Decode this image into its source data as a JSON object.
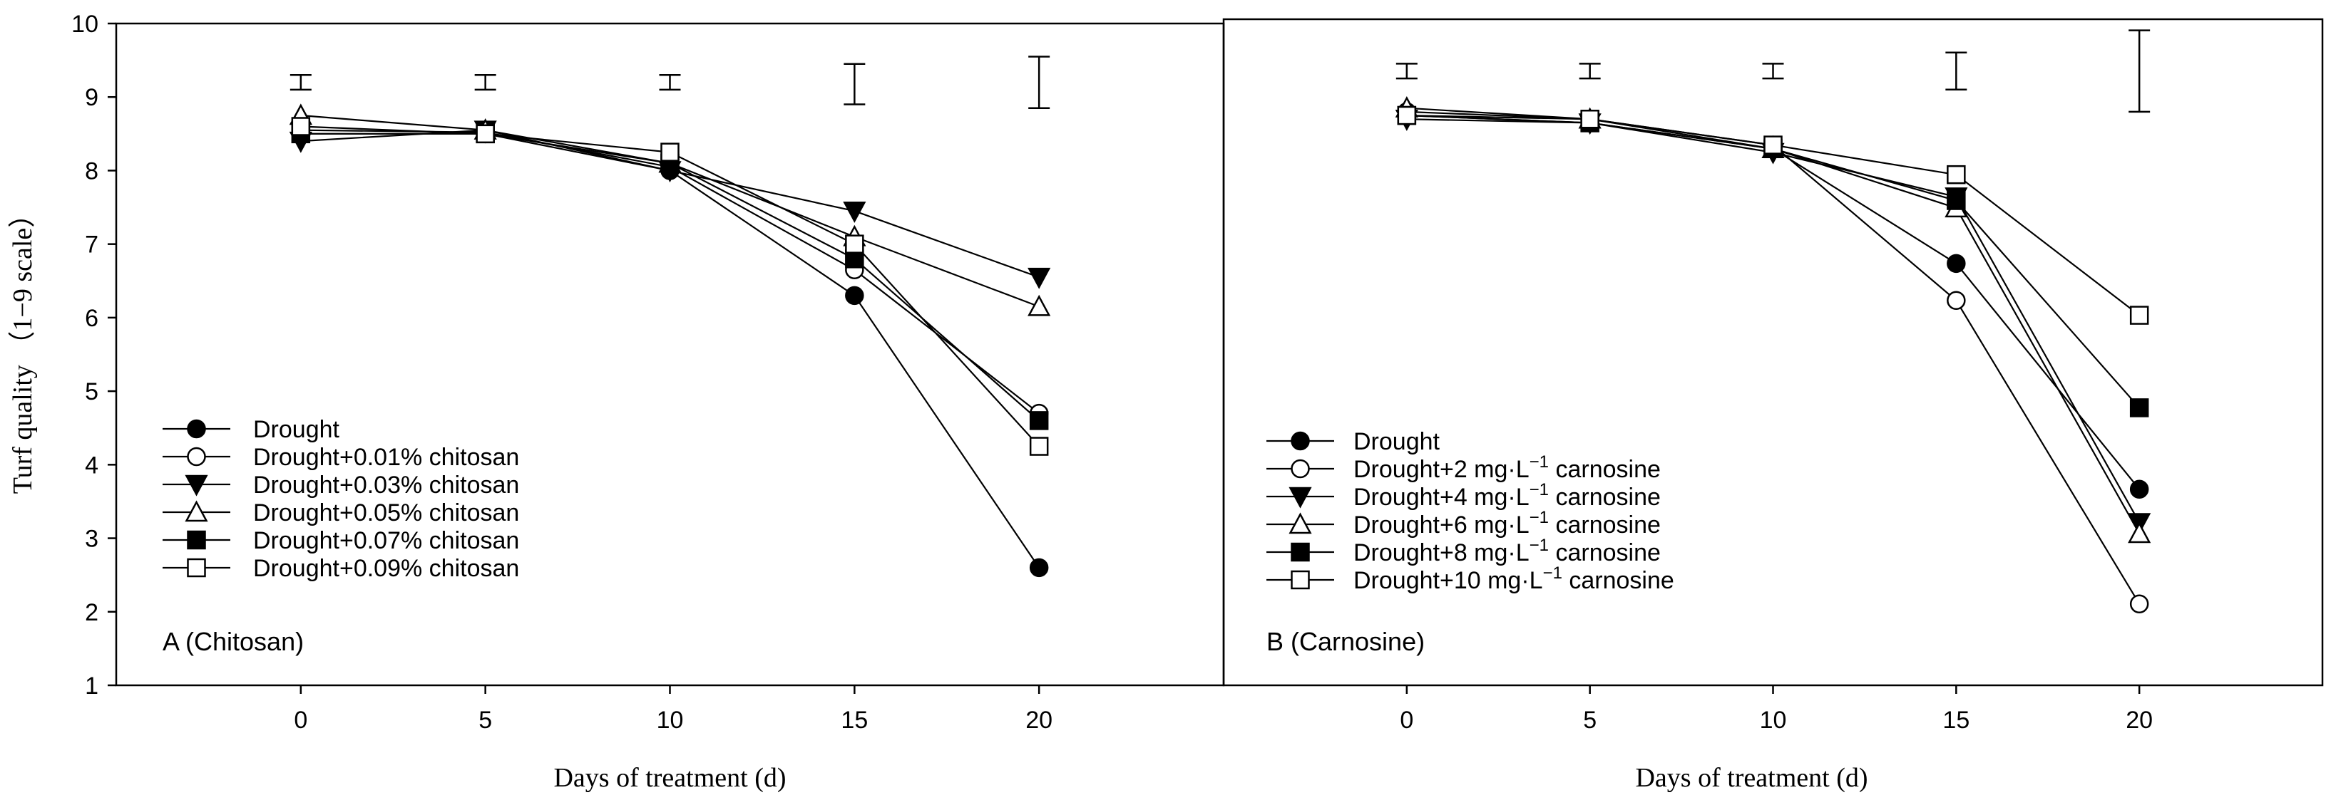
{
  "chart_data": [
    {
      "type": "line",
      "panel_label": "A (Chitosan)",
      "xlabel": "Days of treatment (d)",
      "ylabel": "Turf quality （1−9 scale）",
      "xlim": [
        -5,
        25
      ],
      "ylim": [
        1,
        10
      ],
      "x": [
        0,
        5,
        10,
        15,
        20
      ],
      "xticks": [
        0,
        5,
        10,
        15,
        20
      ],
      "yticks": [
        1,
        2,
        3,
        4,
        5,
        6,
        7,
        8,
        9,
        10
      ],
      "legend_position": "lower-left",
      "series": [
        {
          "name": "Drought",
          "label_parts": [
            "Drought"
          ],
          "marker": "circle",
          "filled": true,
          "values": [
            8.5,
            8.5,
            8.0,
            6.3,
            2.6
          ]
        },
        {
          "name": "Drought+0.01% chitosan",
          "label_parts": [
            "Drought+0.01% chitosan"
          ],
          "marker": "circle",
          "filled": false,
          "values": [
            8.55,
            8.52,
            8.05,
            6.65,
            4.7
          ]
        },
        {
          "name": "Drought+0.03% chitosan",
          "label_parts": [
            "Drought+0.03% chitosan"
          ],
          "marker": "triangle-down",
          "filled": true,
          "values": [
            8.4,
            8.55,
            8.0,
            7.45,
            6.55
          ]
        },
        {
          "name": "Drought+0.05% chitosan",
          "label_parts": [
            "Drought+0.05% chitosan"
          ],
          "marker": "triangle-up",
          "filled": false,
          "values": [
            8.75,
            8.55,
            8.1,
            7.1,
            6.15
          ]
        },
        {
          "name": "Drought+0.07% chitosan",
          "label_parts": [
            "Drought+0.07% chitosan"
          ],
          "marker": "square",
          "filled": true,
          "values": [
            8.5,
            8.5,
            8.1,
            6.8,
            4.6
          ]
        },
        {
          "name": "Drought+0.09% chitosan",
          "label_parts": [
            "Drought+0.09% chitosan"
          ],
          "marker": "square",
          "filled": false,
          "values": [
            8.6,
            8.5,
            8.25,
            7.0,
            4.25
          ]
        }
      ],
      "error_bars": [
        {
          "x": 0,
          "low": 9.1,
          "high": 9.3
        },
        {
          "x": 5,
          "low": 9.1,
          "high": 9.3
        },
        {
          "x": 10,
          "low": 9.1,
          "high": 9.3
        },
        {
          "x": 15,
          "low": 8.9,
          "high": 9.45
        },
        {
          "x": 20,
          "low": 8.85,
          "high": 9.55
        }
      ]
    },
    {
      "type": "line",
      "panel_label": "B (Carnosine)",
      "xlabel": "Days of treatment (d)",
      "ylabel": "",
      "xlim": [
        -5,
        25
      ],
      "ylim": [
        1,
        10
      ],
      "x": [
        0,
        5,
        10,
        15,
        20
      ],
      "xticks": [
        0,
        5,
        10,
        15,
        20
      ],
      "yticks": [
        1,
        2,
        3,
        4,
        5,
        6,
        7,
        8,
        9,
        10
      ],
      "legend_position": "lower-left",
      "series": [
        {
          "name": "Drought",
          "label_parts": [
            "Drought"
          ],
          "marker": "circle",
          "filled": true,
          "values": [
            8.7,
            8.6,
            8.25,
            6.7,
            3.65
          ]
        },
        {
          "name": "Drought+2 mg·L−1 carnosine",
          "label_parts": [
            "Drought+2 mg·L",
            "−1",
            " carnosine"
          ],
          "marker": "circle",
          "filled": false,
          "values": [
            8.75,
            8.65,
            8.3,
            6.2,
            2.1
          ]
        },
        {
          "name": "Drought+4 mg·L−1 carnosine",
          "label_parts": [
            "Drought+4 mg·L",
            "−1",
            " carnosine"
          ],
          "marker": "triangle-down",
          "filled": true,
          "values": [
            8.65,
            8.6,
            8.2,
            7.6,
            3.2
          ]
        },
        {
          "name": "Drought+6 mg·L−1 carnosine",
          "label_parts": [
            "Drought+6 mg·L",
            "−1",
            " carnosine"
          ],
          "marker": "triangle-up",
          "filled": false,
          "values": [
            8.8,
            8.65,
            8.25,
            7.45,
            3.05
          ]
        },
        {
          "name": "Drought+8 mg·L−1 carnosine",
          "label_parts": [
            "Drought+8 mg·L",
            "−1",
            " carnosine"
          ],
          "marker": "square",
          "filled": true,
          "values": [
            8.7,
            8.6,
            8.25,
            7.55,
            4.75
          ]
        },
        {
          "name": "Drought+10 mg·L−1 carnosine",
          "label_parts": [
            "Drought+10 mg·L",
            "−1",
            " carnosine"
          ],
          "marker": "square",
          "filled": false,
          "values": [
            8.7,
            8.65,
            8.3,
            7.9,
            6.0
          ]
        }
      ],
      "error_bars": [
        {
          "x": 0,
          "low": 9.2,
          "high": 9.4
        },
        {
          "x": 5,
          "low": 9.2,
          "high": 9.4
        },
        {
          "x": 10,
          "low": 9.2,
          "high": 9.4
        },
        {
          "x": 15,
          "low": 9.05,
          "high": 9.55
        },
        {
          "x": 20,
          "low": 8.75,
          "high": 9.85
        }
      ]
    }
  ]
}
